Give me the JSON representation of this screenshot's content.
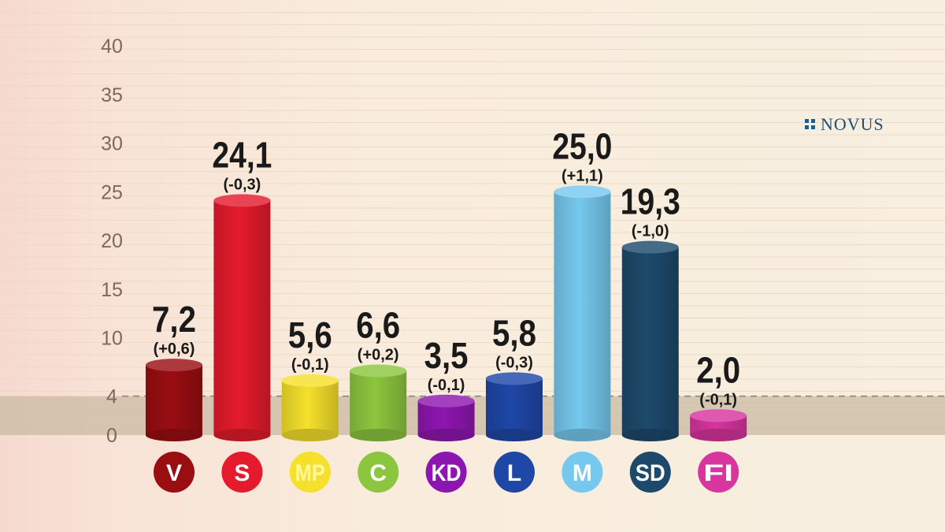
{
  "brand": {
    "logo_text": "NOVUS"
  },
  "chart_data": {
    "type": "bar",
    "categories": [
      "V",
      "S",
      "MP",
      "C",
      "KD",
      "L",
      "M",
      "SD",
      "FI"
    ],
    "values": [
      7.2,
      24.1,
      5.6,
      6.6,
      3.5,
      5.8,
      25.0,
      19.3,
      2.0
    ],
    "value_labels": [
      "7,2",
      "24,1",
      "5,6",
      "6,6",
      "3,5",
      "5,8",
      "25,0",
      "19,3",
      "2,0"
    ],
    "changes": [
      "(+0,6)",
      "(-0,3)",
      "(-0,1)",
      "(+0,2)",
      "(-0,1)",
      "(-0,3)",
      "(+1,1)",
      "(-1,0)",
      "(-0,1)"
    ],
    "colors": [
      "#9a0e12",
      "#e41b2d",
      "#f5e02c",
      "#8cc63f",
      "#8e16b0",
      "#1f47a8",
      "#76c8ee",
      "#1d4a6b",
      "#d8359f"
    ],
    "label_text_colors": [
      "#ffffff",
      "#ffffff",
      "#fff8a0",
      "#ffffff",
      "#ffffff",
      "#ffffff",
      "#ffffff",
      "#ffffff",
      "#ffffff"
    ],
    "yticks": [
      "0",
      "4",
      "10",
      "15",
      "20",
      "25",
      "30",
      "35",
      "40"
    ],
    "ylim": [
      0,
      40
    ],
    "threshold": 4,
    "grid": true
  }
}
